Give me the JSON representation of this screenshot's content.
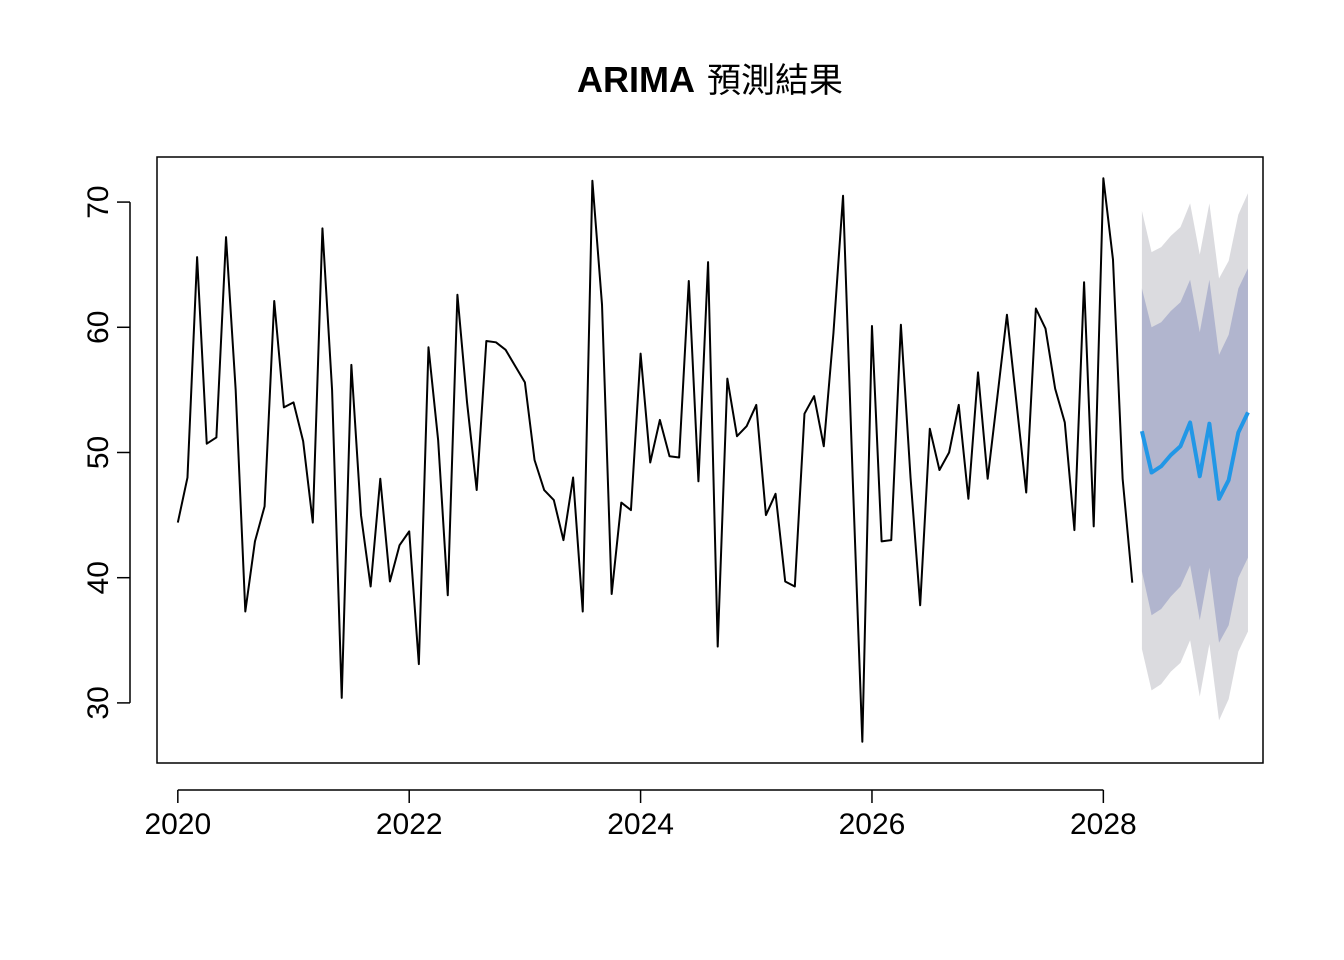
{
  "chart_data": {
    "type": "line",
    "title": "ARIMA",
    "title_suffix": "預測結果",
    "xlabel": "",
    "ylabel": "",
    "xlim": [
      2019.82,
      2029.38
    ],
    "ylim": [
      25.2,
      73.6
    ],
    "x_ticks": [
      2020,
      2022,
      2024,
      2026,
      2028
    ],
    "x_tick_labels": [
      "2020",
      "2022",
      "2024",
      "2026",
      "2028"
    ],
    "y_ticks": [
      30,
      40,
      50,
      60,
      70
    ],
    "y_tick_labels": [
      "30",
      "40",
      "50",
      "60",
      "70"
    ],
    "grid": false,
    "observed": {
      "start": 2020,
      "frequency": 12,
      "color": "#000000",
      "values": [
        44.4,
        48.0,
        65.6,
        50.7,
        51.2,
        67.2,
        55.0,
        37.3,
        42.9,
        45.7,
        62.1,
        53.6,
        54.0,
        50.9,
        44.4,
        67.9,
        55.0,
        30.4,
        57.0,
        45.0,
        39.3,
        47.9,
        39.7,
        42.6,
        43.7,
        33.1,
        58.4,
        51.0,
        38.6,
        62.6,
        54.0,
        47.0,
        58.9,
        58.8,
        58.2,
        56.9,
        55.6,
        49.4,
        47.0,
        46.2,
        43.0,
        48.0,
        37.3,
        71.7,
        61.8,
        38.7,
        46.0,
        45.4,
        57.9,
        49.2,
        52.6,
        49.7,
        49.6,
        63.7,
        47.7,
        65.2,
        34.5,
        55.9,
        51.3,
        52.1,
        53.8,
        45.0,
        46.7,
        39.7,
        39.3,
        53.1,
        54.5,
        50.5,
        59.5,
        70.5,
        48.0,
        26.9,
        60.1,
        42.9,
        43.0,
        60.2,
        48.0,
        37.8,
        51.9,
        48.6,
        50.0,
        53.8,
        46.3,
        56.4,
        47.9,
        54.4,
        61.0,
        53.9,
        46.8,
        61.5,
        59.9,
        55.1,
        52.4,
        43.8,
        63.6,
        44.1,
        71.9,
        65.4,
        47.9,
        39.6
      ]
    },
    "forecast": {
      "start": 2028.3333,
      "frequency": 12,
      "color": "#2297E6",
      "mean": [
        51.7,
        48.4,
        48.9,
        49.8,
        50.5,
        52.4,
        48.1,
        52.3,
        46.3,
        47.8,
        51.6,
        53.2
      ],
      "lo80": [
        40.5,
        37.0,
        37.5,
        38.5,
        39.3,
        41.0,
        36.6,
        40.8,
        34.8,
        36.2,
        40.0,
        41.6
      ],
      "hi80": [
        63.1,
        60.0,
        60.4,
        61.3,
        62.0,
        63.8,
        59.6,
        63.8,
        57.8,
        59.4,
        63.1,
        64.7
      ],
      "lo95": [
        34.3,
        31.0,
        31.5,
        32.5,
        33.2,
        35.0,
        30.5,
        34.7,
        28.6,
        30.3,
        34.1,
        35.7
      ],
      "hi95": [
        69.3,
        66.0,
        66.4,
        67.3,
        68.0,
        69.9,
        65.8,
        69.9,
        63.9,
        65.3,
        69.0,
        70.7
      ],
      "band80_color": "#B1B5CE",
      "band95_color": "#DBDBDF"
    }
  }
}
